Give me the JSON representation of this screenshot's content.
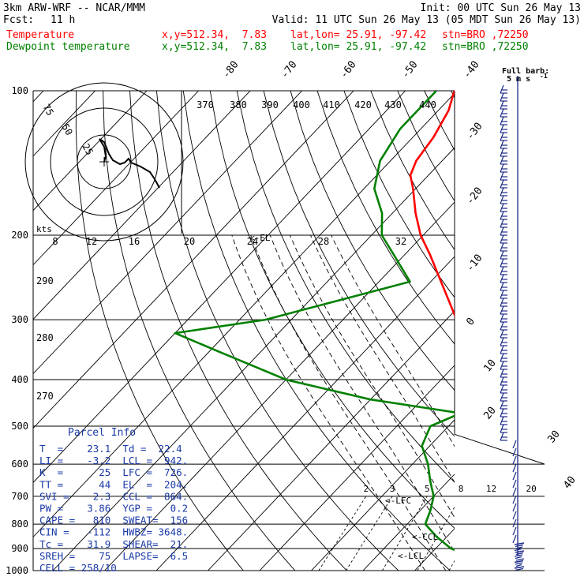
{
  "header": {
    "model": "3km ARW-WRF -- NCAR/MMM",
    "init": "Init: 00 UTC Sun 26 May 13",
    "fcst_label": "Fcst:",
    "fcst_value": "11 h",
    "valid": "Valid: 11 UTC Sun 26 May 13 (05 MDT Sun 26 May 13)",
    "temp_line": {
      "name": "Temperature",
      "xy": "x,y=512.34,  7.83",
      "latlon": "lat,lon= 25.91, -97.42",
      "stn": "stn=BRO ,72250",
      "color": "#ff0000"
    },
    "dew_line": {
      "name": "Dewpoint temperature",
      "xy": "x,y=512.34,  7.83",
      "latlon": "lat,lon= 25.91, -97.42",
      "stn": "stn=BRO ,72250",
      "color": "#008000"
    }
  },
  "barb_legend": {
    "title": "Full barb:",
    "value": "5 m s",
    "superscript": "-1"
  },
  "parcel_info": {
    "title": "Parcel Info",
    "rows": [
      "T  =    23.1  Td =  22.4",
      "LI =    -3.2  LCL =  942.",
      "K  =      25  LFC =  726.",
      "TT =      44  EL  =  204.",
      "SVI =    2.3  CCL =  864.",
      "PW =    3.86  YGP =   0.2",
      "CAPE =   810  SWEAT=  156",
      "CIN =   -112  HWBZ= 3648.",
      "Tc =    31.9  SHEAR=  21.",
      "SREH =    75  LAPSE=  6.5",
      "CELL = 258/10"
    ]
  },
  "chart_data": {
    "type": "line",
    "subtype": "skew-T log-p",
    "pressure_ticks": [
      "100",
      "200",
      "300",
      "400",
      "500",
      "600",
      "700",
      "800",
      "900",
      "1000"
    ],
    "isotherm_labels_top": [
      "-80",
      "-70",
      "-60",
      "-50",
      "-40"
    ],
    "isotherm_labels_right": [
      "-30",
      "-20",
      "-10",
      "0",
      "10",
      "20",
      "30",
      "40"
    ],
    "theta_labels": [
      "370",
      "380",
      "390",
      "400",
      "410",
      "420",
      "430",
      "440"
    ],
    "theta_labels_left": [
      "290",
      "280",
      "270"
    ],
    "mixing_ratio_labels": [
      "2",
      "3",
      "5",
      "8",
      "12",
      "20"
    ],
    "hodograph": {
      "unit": "kts",
      "speed_labels": [
        "8",
        "12",
        "16",
        "20",
        "24",
        "28",
        "32"
      ],
      "ring_labels": [
        "25",
        "50",
        "75"
      ]
    },
    "level_markers": [
      {
        "label": "<-LFC",
        "pressure": 726
      },
      {
        "label": "<-CCL",
        "pressure": 864
      },
      {
        "label": "<-LCL",
        "pressure": 942
      },
      {
        "label": "<-EL",
        "pressure": 204
      }
    ],
    "series": [
      {
        "name": "Temperature",
        "color": "#ff0000",
        "points": [
          [
            1000,
            23.1
          ],
          [
            980,
            23.3
          ],
          [
            950,
            22.2
          ],
          [
            900,
            20.0
          ],
          [
            850,
            17.5
          ],
          [
            800,
            15.0
          ],
          [
            750,
            12.3
          ],
          [
            700,
            9.7
          ],
          [
            650,
            6.8
          ],
          [
            600,
            3.6
          ],
          [
            550,
            0.2
          ],
          [
            500,
            -3.3
          ],
          [
            450,
            -7.8
          ],
          [
            400,
            -13.3
          ],
          [
            350,
            -20.0
          ],
          [
            300,
            -28.0
          ],
          [
            250,
            -38.0
          ],
          [
            220,
            -45.0
          ],
          [
            200,
            -50.5
          ],
          [
            180,
            -55.5
          ],
          [
            160,
            -60.5
          ],
          [
            150,
            -63.5
          ],
          [
            140,
            -65.0
          ],
          [
            125,
            -66.0
          ],
          [
            110,
            -68.0
          ],
          [
            100,
            -70.5
          ]
        ]
      },
      {
        "name": "Dewpoint temperature",
        "color": "#008000",
        "points": [
          [
            1000,
            22.4
          ],
          [
            985,
            22.3
          ],
          [
            960,
            21.0
          ],
          [
            940,
            19.5
          ],
          [
            920,
            16.5
          ],
          [
            900,
            13.0
          ],
          [
            850,
            8.0
          ],
          [
            800,
            3.5
          ],
          [
            750,
            2.0
          ],
          [
            700,
            0.0
          ],
          [
            650,
            -3.5
          ],
          [
            600,
            -7.0
          ],
          [
            550,
            -11.5
          ],
          [
            500,
            -13.5
          ],
          [
            470,
            -10.0
          ],
          [
            440,
            -30.0
          ],
          [
            400,
            -50.0
          ],
          [
            350,
            -68.0
          ],
          [
            320,
            -80.0
          ],
          [
            300,
            -65.0
          ],
          [
            250,
            -44.0
          ],
          [
            220,
            -52.0
          ],
          [
            200,
            -58.0
          ],
          [
            180,
            -62.0
          ],
          [
            160,
            -68.0
          ],
          [
            140,
            -72.0
          ],
          [
            120,
            -74.0
          ],
          [
            100,
            -74.0
          ]
        ]
      }
    ]
  }
}
